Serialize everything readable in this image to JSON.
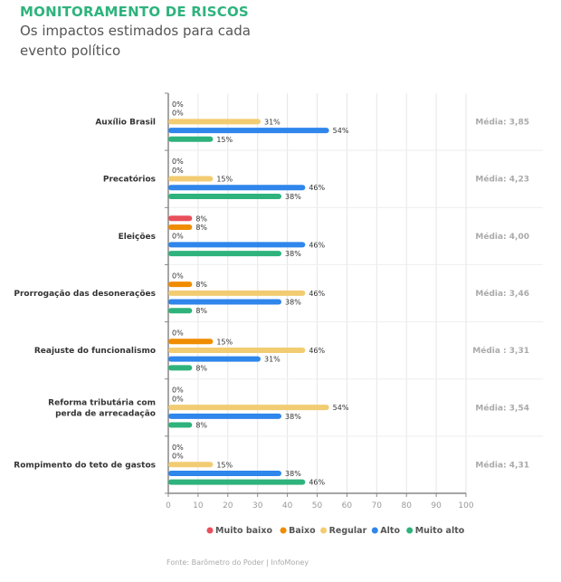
{
  "header": {
    "title": "MONITORAMENTO DE RISCOS",
    "subtitle": "Os impactos estimados para cada evento político"
  },
  "chart_data": {
    "type": "bar",
    "orientation": "horizontal",
    "categories": [
      "Auxílio Brasil",
      "Precatórios",
      "Eleições",
      "Prorrogação das desonerações",
      "Reajuste do funcionalismo",
      "Reforma tributária com perda de arrecadação",
      "Rompimento do teto de gastos"
    ],
    "category_lines": [
      [
        "Auxílio Brasil"
      ],
      [
        "Precatórios"
      ],
      [
        "Eleições"
      ],
      [
        "Prorrogação das desonerações"
      ],
      [
        "Reajuste do funcionalismo"
      ],
      [
        "Reforma tributária com",
        "perda de arrecadação"
      ],
      [
        "Rompimento do teto de gastos"
      ]
    ],
    "series": [
      {
        "name": "Muito baixo",
        "color": "#e8505b",
        "values": [
          0,
          0,
          8,
          0,
          0,
          0,
          0
        ]
      },
      {
        "name": "Baixo",
        "color": "#f08c00",
        "values": [
          0,
          0,
          8,
          8,
          15,
          0,
          0
        ]
      },
      {
        "name": "Regular",
        "color": "#f2cc72",
        "values": [
          31,
          15,
          0,
          46,
          46,
          54,
          15
        ]
      },
      {
        "name": "Alto",
        "color": "#2f86eb",
        "values": [
          54,
          46,
          46,
          38,
          31,
          38,
          38
        ]
      },
      {
        "name": "Muito alto",
        "color": "#2eb37c",
        "values": [
          15,
          38,
          38,
          8,
          8,
          8,
          46
        ]
      }
    ],
    "medias": [
      "Média: 3,85",
      "Média: 4,23",
      "Média: 4,00",
      "Média: 3,46",
      "Média : 3,31",
      "Média: 3,54",
      "Média: 4,31"
    ],
    "xlim": [
      0,
      100
    ],
    "xticks": [
      "0",
      "10",
      "20",
      "30",
      "40",
      "50",
      "60",
      "70",
      "80",
      "90",
      "100"
    ],
    "value_suffix": "%",
    "legend_position": "bottom",
    "grid": true
  },
  "footer": {
    "source": "Fonte: Barômetro do Poder | InfoMoney"
  }
}
